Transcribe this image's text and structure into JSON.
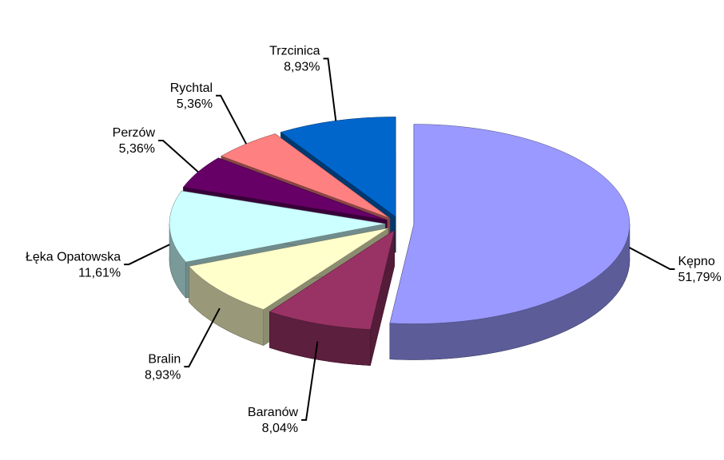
{
  "chart_data": {
    "type": "pie",
    "categories": [
      "Kępno",
      "Baranów",
      "Bralin",
      "Łęka Opatowska",
      "Perzów",
      "Rychtal",
      "Trzcinica"
    ],
    "values": [
      51.79,
      8.04,
      8.93,
      11.61,
      5.36,
      5.36,
      8.93
    ],
    "value_labels": [
      "51,79%",
      "8,04%",
      "8,93%",
      "11,61%",
      "5,36%",
      "5,36%",
      "8,93%"
    ],
    "colors": [
      "#9999ff",
      "#993366",
      "#ffffcc",
      "#ccffff",
      "#660066",
      "#ff8080",
      "#0066cc"
    ]
  }
}
